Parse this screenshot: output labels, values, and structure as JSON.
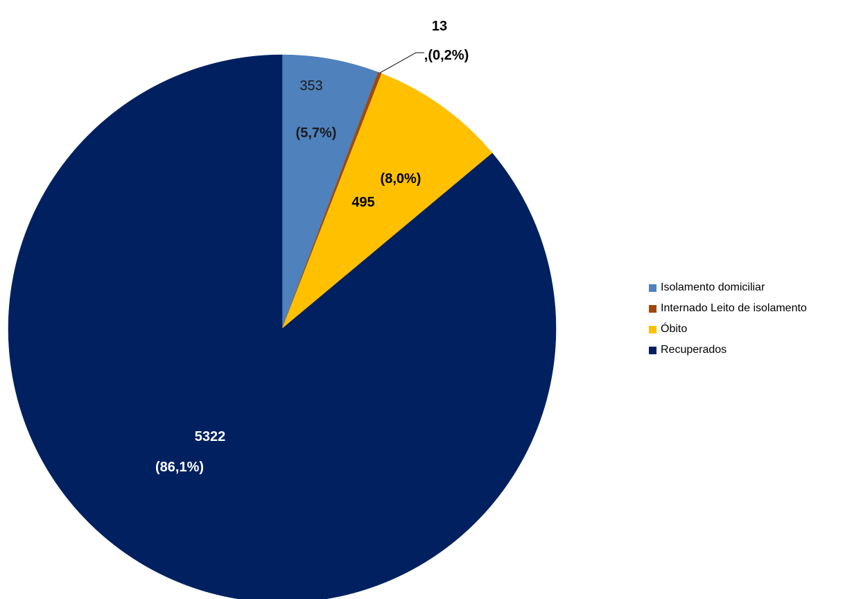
{
  "chart_data": {
    "type": "pie",
    "title": "",
    "categories": [
      "Isolamento domiciliar",
      "Internado Leito de isolamento",
      "Óbito",
      "Recuperados"
    ],
    "values": [
      353,
      13,
      495,
      5322
    ],
    "value_labels": [
      "353",
      "13",
      "495",
      "5322"
    ],
    "percent_labels": [
      "(5,7%)",
      ",(0,2%)",
      "(8,0%)",
      "(86,1%)"
    ],
    "colors": [
      "#4F81BD",
      "#A0480C",
      "#FFC000",
      "#002060"
    ],
    "label_colors": [
      "#1a1a1a",
      "#000000",
      "#000000",
      "#ffffff"
    ],
    "start_angle_deg": 0,
    "direction": "clockwise",
    "legend_position": "right"
  }
}
